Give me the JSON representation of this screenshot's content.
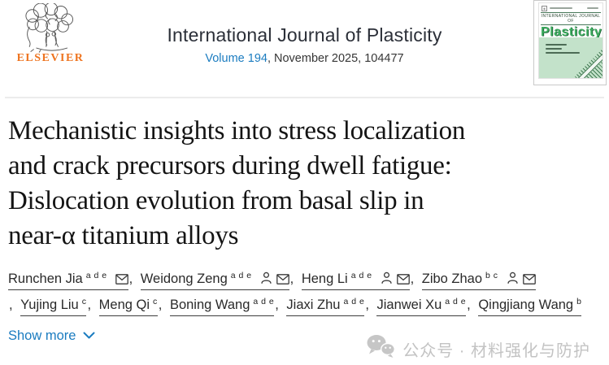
{
  "header": {
    "publisher_wordmark": "ELSEVIER",
    "journal_title": "International Journal of Plasticity",
    "volume_link": "Volume 194",
    "issue_rest": ", November 2025, 104477",
    "cover": {
      "series_label": "INTERNATIONAL JOURNAL OF",
      "title": "Plasticity"
    }
  },
  "article": {
    "title_lines": [
      "Mechanistic insights into stress localization",
      "and crack precursors during dwell fatigue:",
      "Dislocation evolution from basal slip in",
      "near-α titanium alloys"
    ]
  },
  "authors": {
    "separator": ",",
    "list": [
      {
        "name": "Runchen Jia",
        "sup": "a d e"
      },
      {
        "name": "Weidong Zeng",
        "sup": "a d e"
      },
      {
        "name": "Heng Li",
        "sup": "a d e"
      },
      {
        "name": "Zibo Zhao",
        "sup": "b c"
      },
      {
        "name": "Yujing Liu",
        "sup": "c"
      },
      {
        "name": "Meng Qi",
        "sup": "c"
      },
      {
        "name": "Boning Wang",
        "sup": "a d e"
      },
      {
        "name": "Jiaxi Zhu",
        "sup": "a d e"
      },
      {
        "name": "Jianwei Xu",
        "sup": "a d e"
      },
      {
        "name": "Qingjiang Wang",
        "sup": "b"
      }
    ]
  },
  "actions": {
    "show_more_label": "Show more"
  },
  "watermark": {
    "text": "公众号 · 材料强化与防护"
  },
  "colors": {
    "link_blue": "#1b7cc0",
    "elsevier_orange": "#ee7420",
    "title_dark": "#141414",
    "watermark_gray": "#c3c3c3",
    "cover_green": "#c3e2ca"
  }
}
